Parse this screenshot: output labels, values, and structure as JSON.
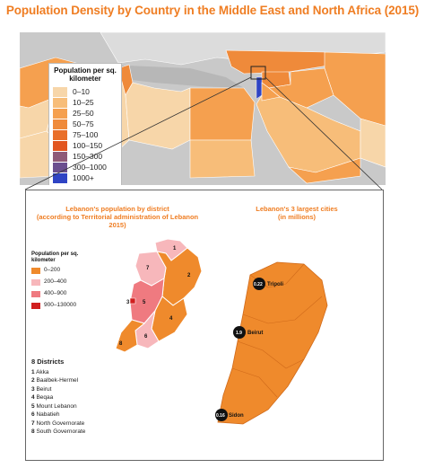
{
  "title": "Population Density by Country in the Middle East and North Africa (2015)",
  "main_legend": {
    "title": "Population per sq. kilometer",
    "items": [
      {
        "label": "0–10",
        "color": "#f7d6a9"
      },
      {
        "label": "10–25",
        "color": "#f7bd79"
      },
      {
        "label": "25–50",
        "color": "#f5a04f"
      },
      {
        "label": "50–75",
        "color": "#ef8a3a"
      },
      {
        "label": "75–100",
        "color": "#e96f2a"
      },
      {
        "label": "100–150",
        "color": "#e2551f"
      },
      {
        "label": "150–300",
        "color": "#8f5a78"
      },
      {
        "label": "300–1000",
        "color": "#6b4f8f"
      },
      {
        "label": "1000+",
        "color": "#2f44c4"
      }
    ]
  },
  "inset": {
    "left_heading": "Lebanon's population by district\n(according to Territorial administration of Lebanon 2015)",
    "right_heading": "Lebanon's 3 largest cities\n(in millions)",
    "district_legend": {
      "title": "Population per sq. kilometer",
      "items": [
        {
          "label": "0–200",
          "color": "#ef8a2c"
        },
        {
          "label": "200–400",
          "color": "#f7b7bb"
        },
        {
          "label": "400–900",
          "color": "#ef7a80"
        },
        {
          "label": "900–130000",
          "color": "#d11f1f"
        }
      ]
    },
    "districts_title": "8 Districts",
    "districts": [
      {
        "num": "1",
        "name": "Akka"
      },
      {
        "num": "2",
        "name": "Baalbek-Hermel"
      },
      {
        "num": "3",
        "name": "Beirut"
      },
      {
        "num": "4",
        "name": "Beqaa"
      },
      {
        "num": "5",
        "name": "Mount Lebanon"
      },
      {
        "num": "6",
        "name": "Nabatieh"
      },
      {
        "num": "7",
        "name": "North Governorate"
      },
      {
        "num": "8",
        "name": "South Governorate"
      }
    ],
    "cities": [
      {
        "name": "Tripoli",
        "value": "0.22"
      },
      {
        "name": "Beirut",
        "value": "1.9"
      },
      {
        "name": "Sidon",
        "value": "0.16"
      }
    ]
  }
}
